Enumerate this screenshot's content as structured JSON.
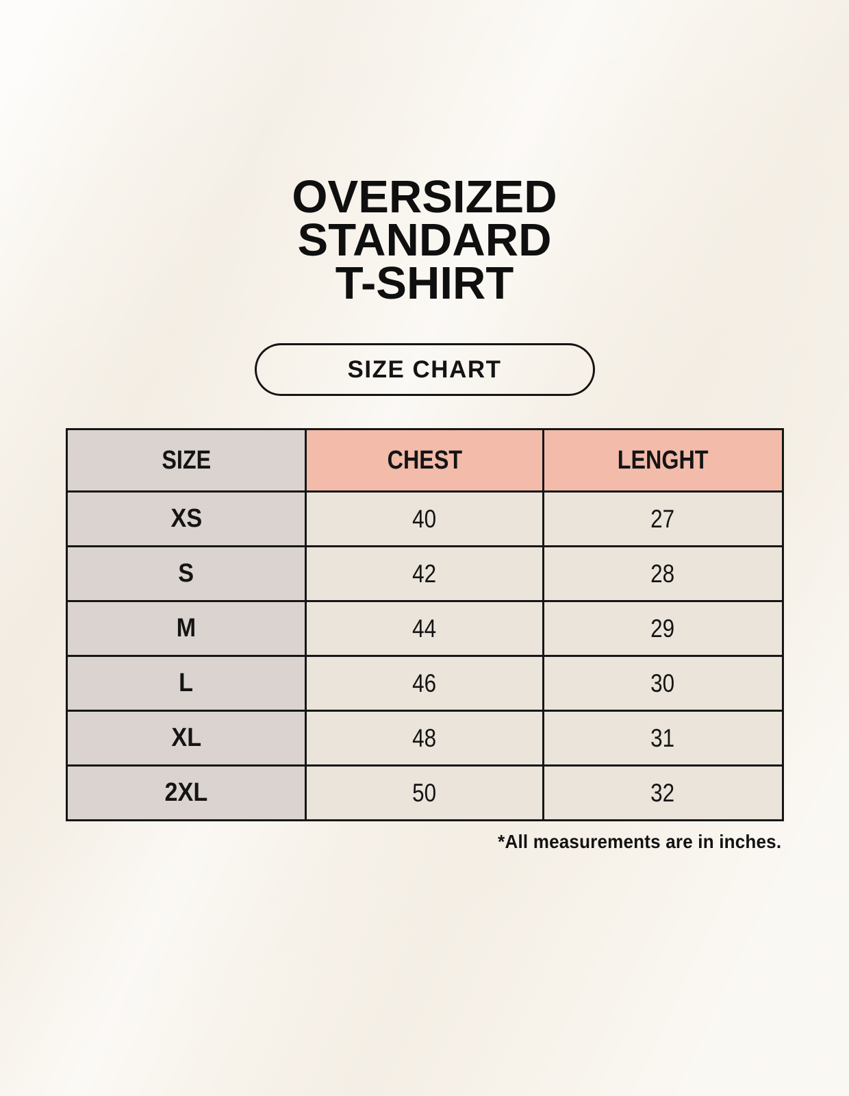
{
  "header": {
    "title_lines": [
      "OVERSIZED",
      "STANDARD",
      "T-SHIRT"
    ],
    "badge_label": "SIZE CHART"
  },
  "chart_data": {
    "type": "table",
    "title": "OVERSIZED STANDARD T-SHIRT",
    "subtitle": "SIZE CHART",
    "columns": [
      "SIZE",
      "CHEST",
      "LENGHT"
    ],
    "units": "inches",
    "rows": [
      {
        "size": "XS",
        "chest": "40",
        "length": "27"
      },
      {
        "size": "S",
        "chest": "42",
        "length": "28"
      },
      {
        "size": "M",
        "chest": "44",
        "length": "29"
      },
      {
        "size": "L",
        "chest": "46",
        "length": "30"
      },
      {
        "size": "XL",
        "chest": "48",
        "length": "31"
      },
      {
        "size": "2XL",
        "chest": "50",
        "length": "32"
      }
    ]
  },
  "footnote": "*All measurements are in inches.",
  "colors": {
    "background": "#f7f2ea",
    "size_column": "#dad3cf",
    "accent_header": "#f2bbaa",
    "data_cell": "#ebe4da",
    "border": "#161616",
    "text": "#141414"
  }
}
